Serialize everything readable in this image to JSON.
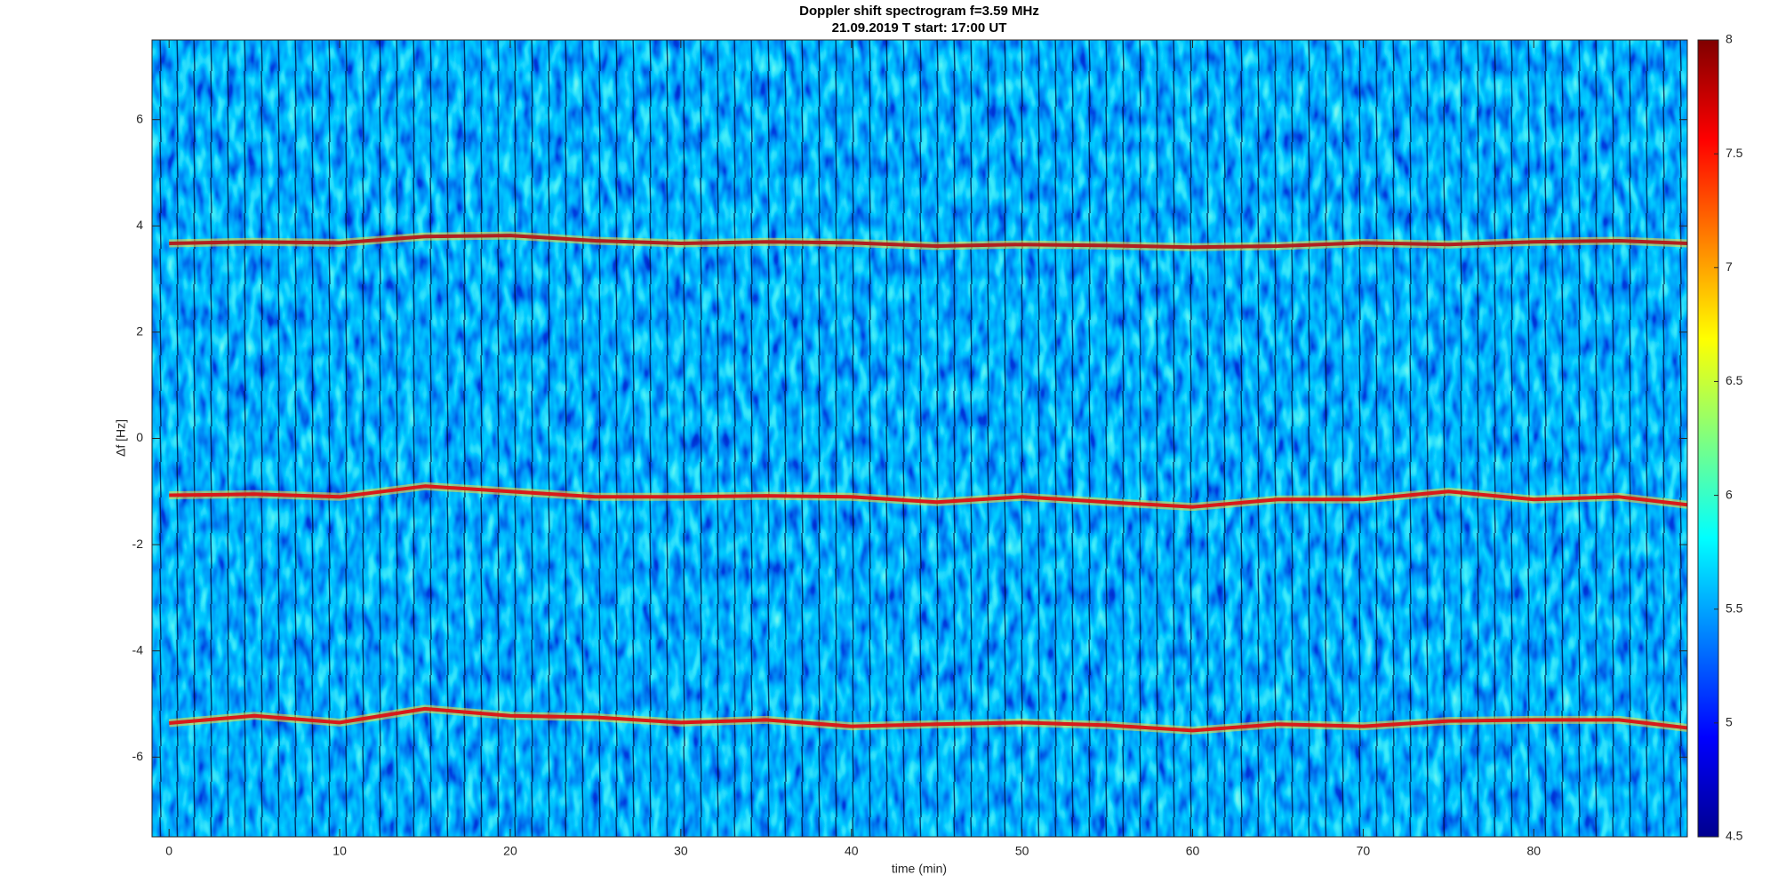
{
  "chart_data": {
    "type": "spectrogram",
    "title": "Doppler shift spectrogram f=3.59 MHz",
    "subtitle": "21.09.2019   T start: 17:00 UT",
    "x_label": "time (min)",
    "y_label": "Δf [Hz]",
    "xlim": [
      -1,
      89
    ],
    "ylim": [
      -7.5,
      7.5
    ],
    "xticks": [
      0,
      10,
      20,
      30,
      40,
      50,
      60,
      70,
      80
    ],
    "yticks": [
      -6,
      -4,
      -2,
      0,
      2,
      4,
      6
    ],
    "clim": [
      4.5,
      8
    ],
    "cticks": [
      4.5,
      5,
      5.5,
      6,
      6.5,
      7,
      7.5,
      8
    ],
    "x": [
      0,
      5,
      10,
      15,
      20,
      25,
      30,
      35,
      40,
      45,
      50,
      55,
      60,
      65,
      70,
      75,
      80,
      85,
      89
    ],
    "series": [
      {
        "color": "#b02020",
        "values": [
          3.67,
          3.7,
          3.68,
          3.8,
          3.82,
          3.72,
          3.67,
          3.7,
          3.68,
          3.62,
          3.65,
          3.63,
          3.6,
          3.62,
          3.68,
          3.65,
          3.7,
          3.72,
          3.67
        ]
      },
      {
        "color": "#d81a1a",
        "values": [
          -1.07,
          -1.05,
          -1.1,
          -0.9,
          -1.0,
          -1.1,
          -1.1,
          -1.08,
          -1.1,
          -1.2,
          -1.1,
          -1.2,
          -1.29,
          -1.15,
          -1.15,
          -1.0,
          -1.15,
          -1.1,
          -1.25
        ]
      },
      {
        "color": "#d81a1a",
        "values": [
          -5.36,
          -5.22,
          -5.35,
          -5.09,
          -5.22,
          -5.25,
          -5.35,
          -5.3,
          -5.42,
          -5.38,
          -5.35,
          -5.4,
          -5.5,
          -5.38,
          -5.42,
          -5.32,
          -5.3,
          -5.3,
          -5.45
        ]
      }
    ]
  }
}
